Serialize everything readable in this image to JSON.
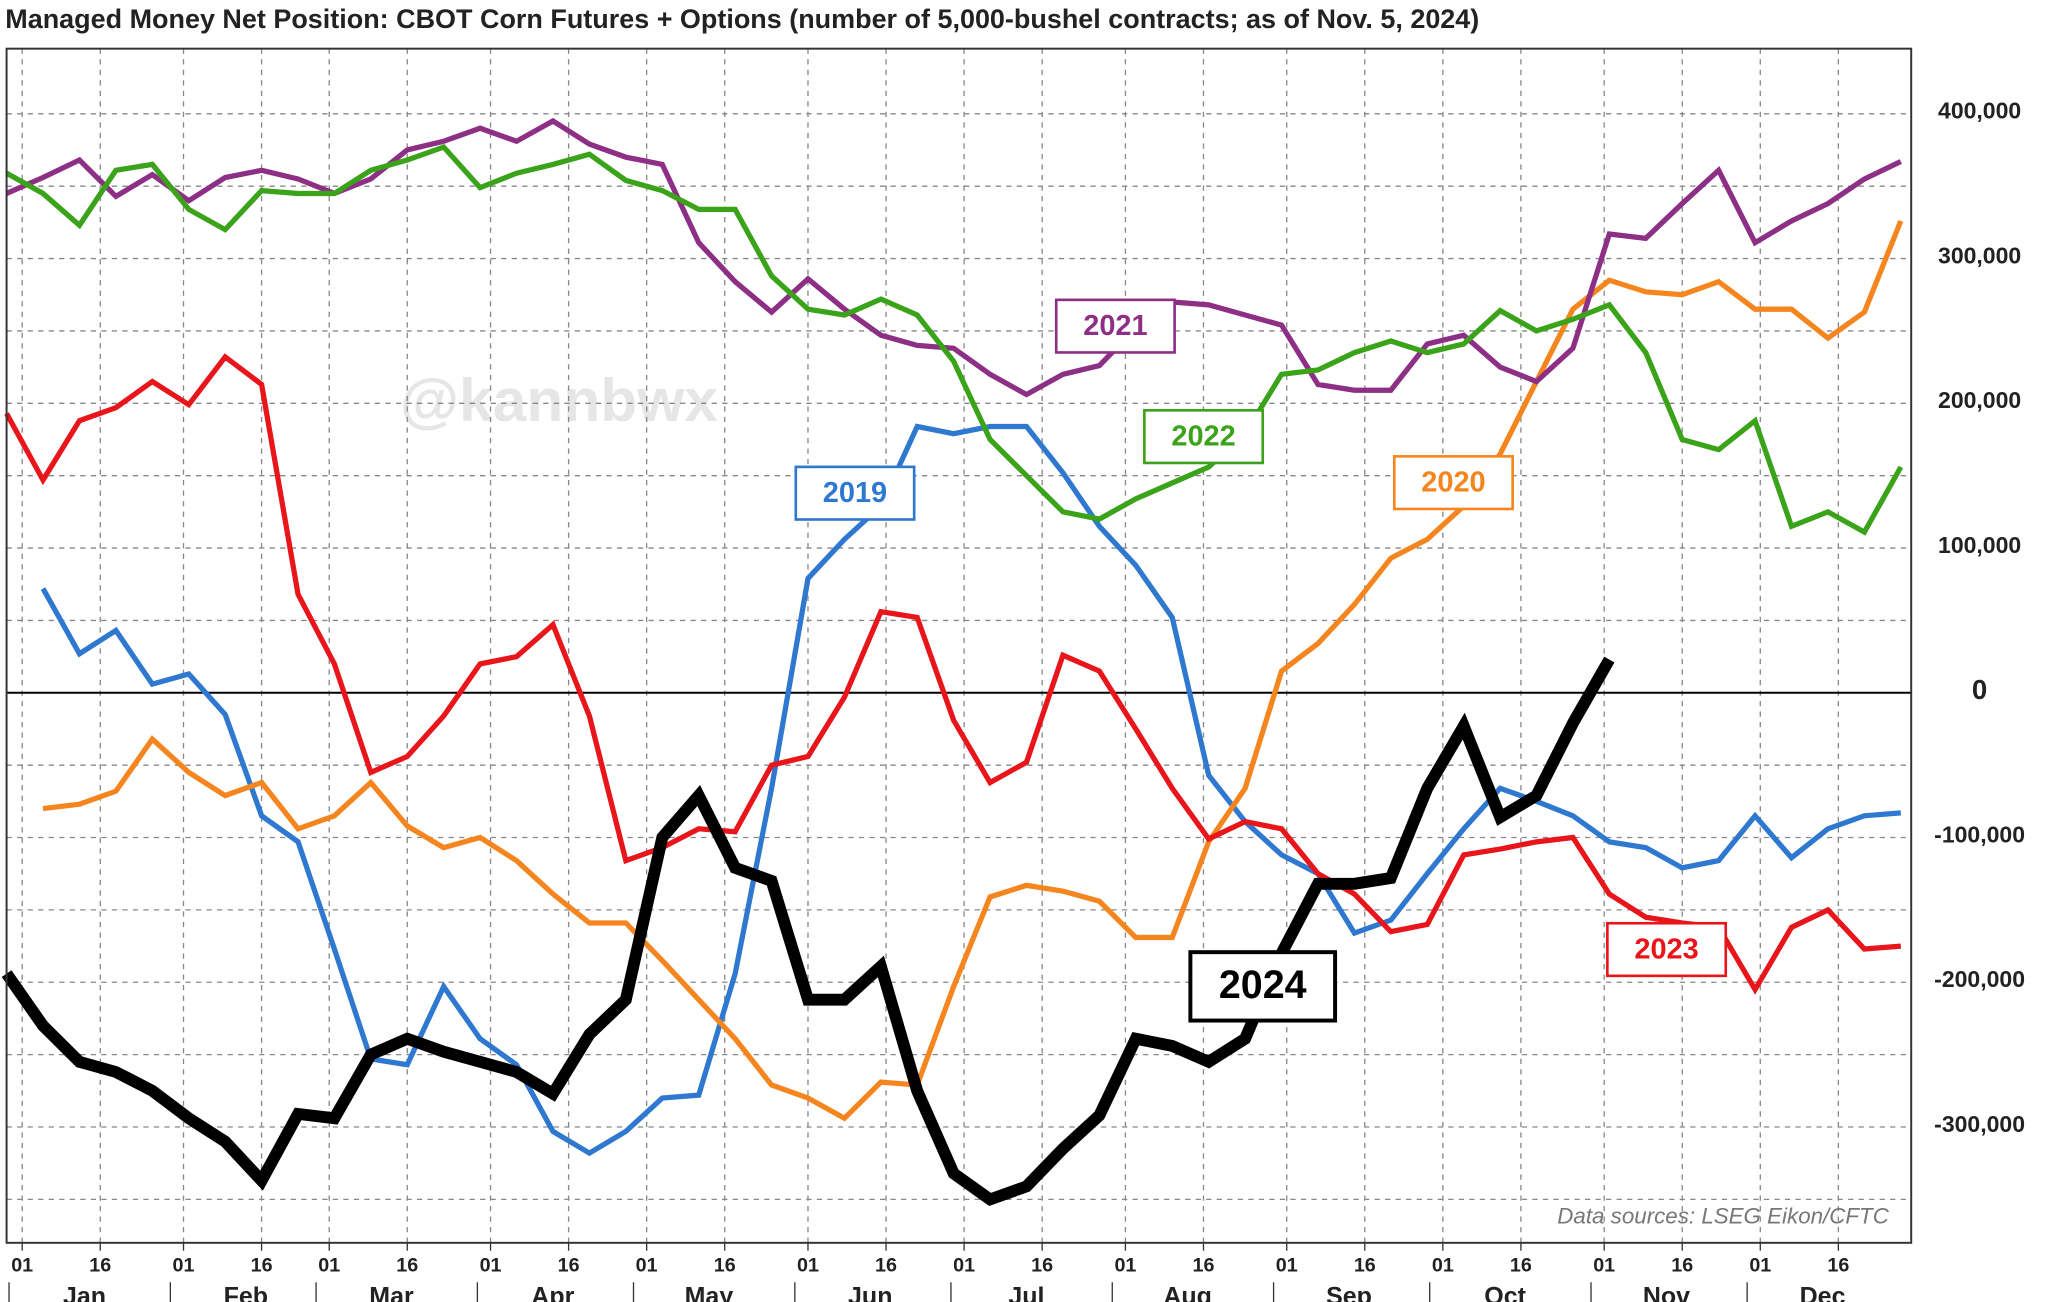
{
  "chart_data": {
    "type": "line",
    "title": "Managed Money Net Position: CBOT Corn Futures + Options (number of 5,000-bushel contracts; as of Nov. 5, 2024)",
    "watermark": "@kannbwx",
    "source": "Data sources: LSEG Eikon/CFTC",
    "x": [
      -2,
      5,
      12,
      19,
      26,
      33,
      40,
      47,
      54,
      61,
      68,
      75,
      82,
      89,
      96,
      103,
      110,
      117,
      124,
      131,
      138,
      145,
      152,
      159,
      166,
      173,
      180,
      187,
      194,
      201,
      208,
      215,
      222,
      229,
      236,
      243,
      250,
      257,
      264,
      271,
      278,
      285,
      292,
      299,
      306,
      313,
      320,
      327,
      334,
      341,
      348,
      355,
      362
    ],
    "xlim": [
      -2,
      364
    ],
    "xticks": [
      {
        "value": 1,
        "label": "01"
      },
      {
        "value": 16,
        "label": "16"
      },
      {
        "value": 32,
        "label": "01"
      },
      {
        "value": 47,
        "label": "16"
      },
      {
        "value": 60,
        "label": "01"
      },
      {
        "value": 75,
        "label": "16"
      },
      {
        "value": 91,
        "label": "01"
      },
      {
        "value": 106,
        "label": "16"
      },
      {
        "value": 121,
        "label": "01"
      },
      {
        "value": 136,
        "label": "16"
      },
      {
        "value": 152,
        "label": "01"
      },
      {
        "value": 167,
        "label": "16"
      },
      {
        "value": 182,
        "label": "01"
      },
      {
        "value": 197,
        "label": "16"
      },
      {
        "value": 213,
        "label": "01"
      },
      {
        "value": 228,
        "label": "16"
      },
      {
        "value": 244,
        "label": "01"
      },
      {
        "value": 259,
        "label": "16"
      },
      {
        "value": 274,
        "label": "01"
      },
      {
        "value": 289,
        "label": "16"
      },
      {
        "value": 305,
        "label": "01"
      },
      {
        "value": 320,
        "label": "16"
      },
      {
        "value": 335,
        "label": "01"
      },
      {
        "value": 350,
        "label": "16"
      }
    ],
    "months": [
      "Jan",
      "Feb",
      "Mar",
      "Apr",
      "May",
      "Jun",
      "Jul",
      "Aug",
      "Sep",
      "Oct",
      "Nov",
      "Dec"
    ],
    "ylim": [
      -380000,
      445000
    ],
    "yticks": [
      {
        "value": -300000,
        "label": "-300,000"
      },
      {
        "value": -200000,
        "label": "-200,000"
      },
      {
        "value": -100000,
        "label": "-100,000"
      },
      0,
      {
        "value": 100000,
        "label": "100,000"
      },
      {
        "value": 200000,
        "label": "200,000"
      },
      {
        "value": 300000,
        "label": "300,000"
      },
      {
        "value": 400000,
        "label": "400,000"
      }
    ],
    "yminor": [
      -350000,
      -250000,
      -150000,
      -50000,
      50000,
      150000,
      250000,
      350000
    ],
    "grid": true,
    "series": [
      {
        "name": "2019",
        "color": "#2f78d0",
        "values": [
          null,
          72000,
          27000,
          43000,
          6000,
          13000,
          -15000,
          -85000,
          -103000,
          -177000,
          -253000,
          -257000,
          -203000,
          -239000,
          -257000,
          -303000,
          -318000,
          -303000,
          -280000,
          -278000,
          -194000,
          -66000,
          79000,
          106000,
          129000,
          184000,
          179000,
          184000,
          184000,
          152000,
          115000,
          88000,
          52000,
          -57000,
          -89000,
          -112000,
          -125000,
          -166000,
          -157000,
          -125000,
          -94000,
          -66000,
          -75000,
          -85000,
          -103000,
          -107000,
          -121000,
          -116000,
          -85000,
          -114000,
          -94000,
          -85000,
          -83000
        ]
      },
      {
        "name": "2020",
        "color": "#f5861f",
        "values": [
          null,
          -80000,
          -77000,
          -68000,
          -32000,
          -55000,
          -71000,
          -62000,
          -94000,
          -85000,
          -62000,
          -92000,
          -107000,
          -100000,
          -116000,
          -139000,
          -159000,
          -159000,
          -185000,
          -212000,
          -239000,
          -271000,
          -280000,
          -294000,
          -269000,
          -271000,
          -203000,
          -141000,
          -133000,
          -137000,
          -144000,
          -169000,
          -169000,
          -103000,
          -66000,
          15000,
          34000,
          61000,
          93000,
          106000,
          129000,
          165000,
          215000,
          265000,
          285000,
          277000,
          275000,
          284000,
          265000,
          265000,
          245000,
          263000,
          326000
        ]
      },
      {
        "name": "2021",
        "color": "#8e2f86",
        "values": [
          345000,
          356000,
          368000,
          343000,
          358000,
          340000,
          356000,
          361000,
          355000,
          345000,
          355000,
          375000,
          381000,
          390000,
          381000,
          395000,
          379000,
          370000,
          365000,
          311000,
          284000,
          263000,
          286000,
          265000,
          247000,
          240000,
          238000,
          220000,
          206000,
          220000,
          226000,
          252000,
          270000,
          268000,
          261000,
          254000,
          213000,
          209000,
          209000,
          241000,
          247000,
          225000,
          215000,
          238000,
          317000,
          314000,
          338000,
          361000,
          311000,
          326000,
          338000,
          355000,
          367000
        ]
      },
      {
        "name": "2022",
        "color": "#3aa31a",
        "values": [
          359000,
          345000,
          323000,
          361000,
          365000,
          334000,
          320000,
          347000,
          345000,
          345000,
          361000,
          368000,
          377000,
          349000,
          359000,
          365000,
          372000,
          354000,
          347000,
          334000,
          334000,
          288000,
          265000,
          261000,
          272000,
          261000,
          229000,
          175000,
          150000,
          125000,
          120000,
          134000,
          145000,
          156000,
          179000,
          220000,
          223000,
          235000,
          243000,
          235000,
          241000,
          264000,
          250000,
          258000,
          268000,
          235000,
          175000,
          168000,
          188000,
          115000,
          125000,
          111000,
          156000
        ]
      },
      {
        "name": "2023",
        "color": "#e8161b",
        "values": [
          193000,
          147000,
          188000,
          197000,
          215000,
          199000,
          232000,
          213000,
          68000,
          20000,
          -55000,
          -44000,
          -16000,
          20000,
          25000,
          47000,
          -16000,
          -116000,
          -107000,
          -94000,
          -96000,
          -50000,
          -44000,
          -3000,
          56000,
          52000,
          -19000,
          -62000,
          -48000,
          26000,
          15000,
          -25000,
          -66000,
          -101000,
          -89000,
          -94000,
          -125000,
          -139000,
          -165000,
          -160000,
          -112000,
          -108000,
          -103000,
          -100000,
          -139000,
          -155000,
          -159000,
          -162000,
          -205000,
          -162000,
          -150000,
          -177000,
          -175000
        ]
      },
      {
        "name": "2024",
        "color": "#000000",
        "values": [
          -194000,
          -230000,
          -255000,
          -262000,
          -275000,
          -294000,
          -310000,
          -337000,
          -291000,
          -294000,
          -250000,
          -239000,
          -248000,
          -255000,
          -262000,
          -277000,
          -236000,
          -212000,
          -100000,
          -71000,
          -121000,
          -130000,
          -212000,
          -212000,
          -189000,
          -275000,
          -332000,
          -350000,
          -341000,
          -315000,
          -292000,
          -239000,
          -244000,
          -255000,
          -239000,
          -180000,
          -132000,
          -132000,
          -128000,
          -66000,
          -23000,
          -86000,
          -71000,
          -21000,
          23000,
          null,
          null,
          null,
          null,
          null,
          null,
          null,
          null
        ]
      }
    ]
  }
}
